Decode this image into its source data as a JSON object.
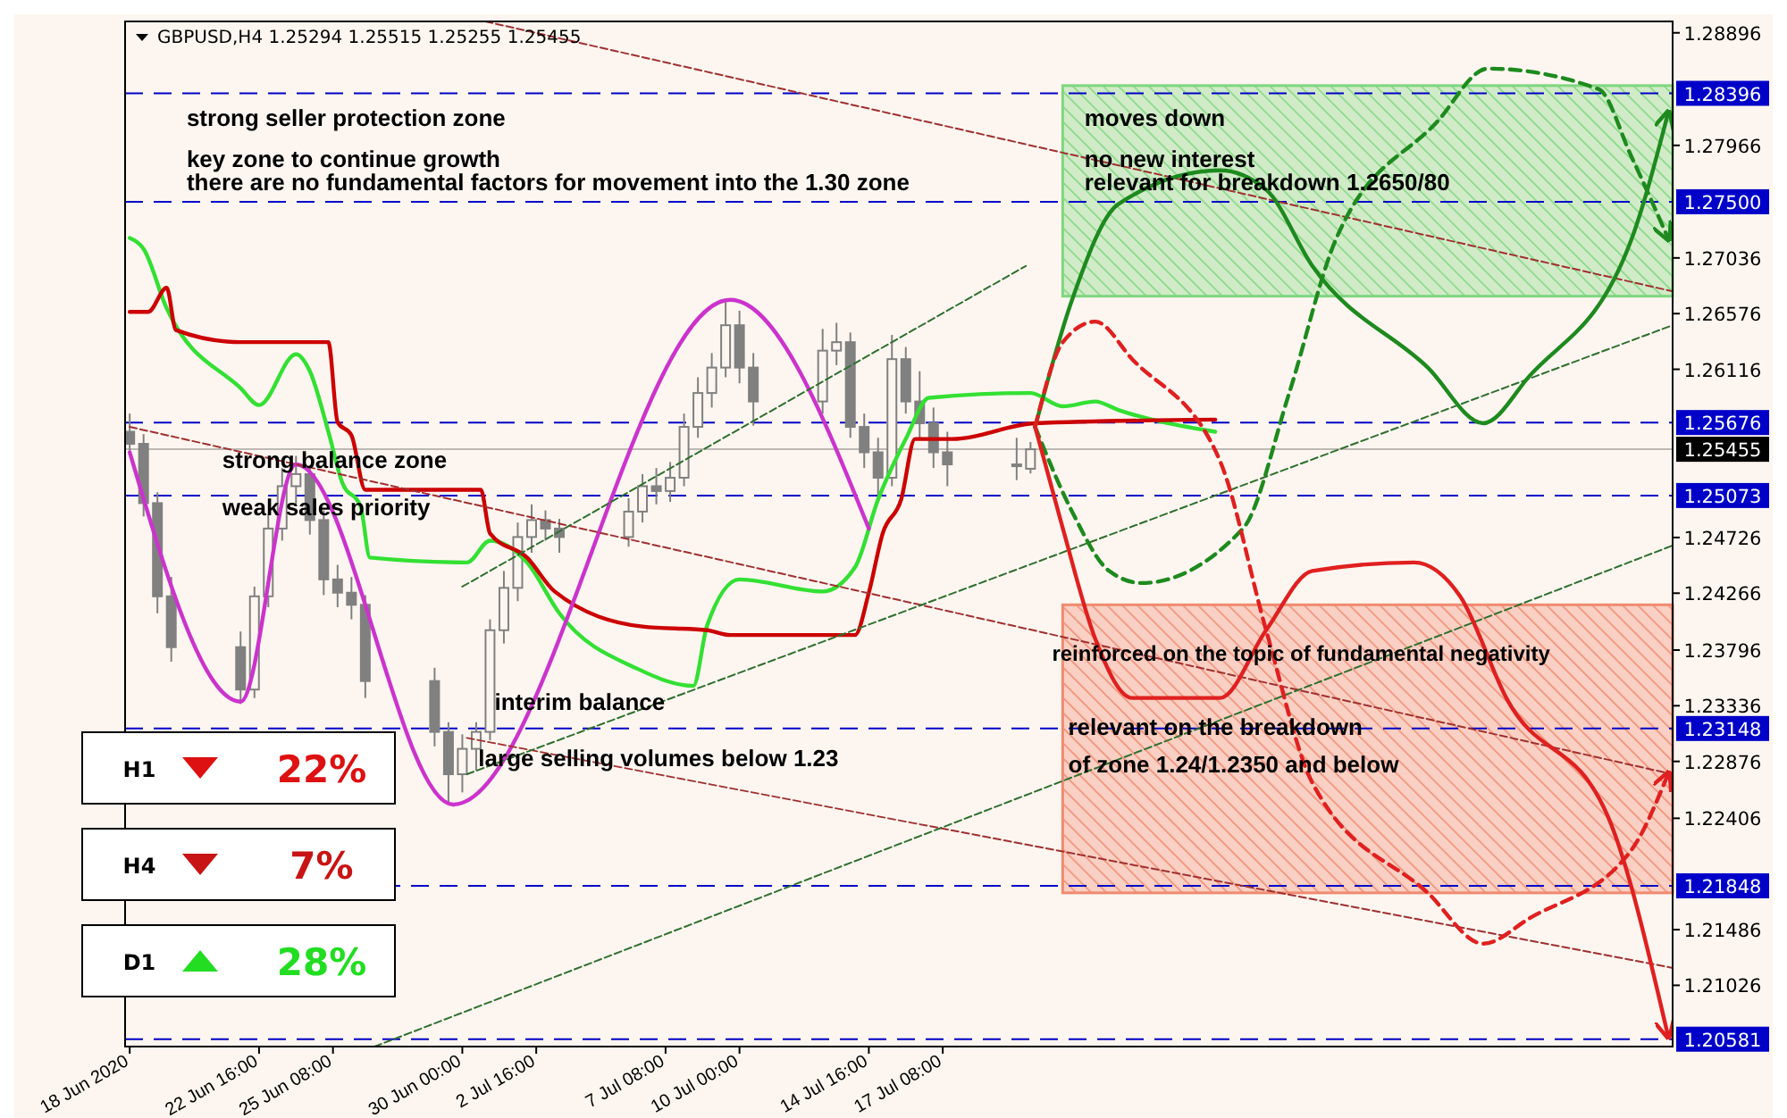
{
  "chart_data": {
    "type": "candlestick",
    "title": "GBPUSD,H4  1.25294 1.25515 1.25255 1.25455",
    "xlim": [
      "2020-06-17T20:00",
      "2020-08-12T16:00"
    ],
    "xticks": [
      {
        "value": "2020-06-18T00:00",
        "label": "18 Jun 2020"
      },
      {
        "value": "2020-06-22T16:00",
        "label": "22 Jun 16:00"
      },
      {
        "value": "2020-06-25T08:00",
        "label": "25 Jun 08:00"
      },
      {
        "value": "2020-06-30T00:00",
        "label": "30 Jun 00:00"
      },
      {
        "value": "2020-07-02T16:00",
        "label": "2 Jul 16:00"
      },
      {
        "value": "2020-07-07T08:00",
        "label": "7 Jul 08:00"
      },
      {
        "value": "2020-07-10T00:00",
        "label": "10 Jul 00:00"
      },
      {
        "value": "2020-07-14T16:00",
        "label": "14 Jul 16:00"
      },
      {
        "value": "2020-07-17T08:00",
        "label": "17 Jul 08:00"
      }
    ],
    "ylim": [
      1.2052,
      1.2899
    ],
    "yticks": [
      1.28896,
      1.27966,
      1.27036,
      1.26576,
      1.26116,
      1.24726,
      1.24266,
      1.23796,
      1.23336,
      1.22876,
      1.22406,
      1.21486,
      1.21026
    ],
    "series": [
      {
        "color": "#808080",
        "x": [
          "2020-06-18T00:00",
          "2020-06-18T12:00",
          "2020-06-19T00:00",
          "2020-06-19T12:00",
          "2020-06-22T00:00",
          "2020-06-22T12:00",
          "2020-06-23T00:00",
          "2020-06-23T12:00",
          "2020-06-24T00:00",
          "2020-06-24T12:00",
          "2020-06-25T00:00",
          "2020-06-25T12:00",
          "2020-06-26T00:00",
          "2020-06-26T12:00",
          "2020-06-29T00:00",
          "2020-06-29T12:00",
          "2020-06-30T00:00",
          "2020-06-30T12:00",
          "2020-07-01T00:00",
          "2020-07-01T12:00",
          "2020-07-02T00:00",
          "2020-07-02T12:00",
          "2020-07-03T00:00",
          "2020-07-03T12:00",
          "2020-07-06T00:00",
          "2020-07-06T12:00",
          "2020-07-07T00:00",
          "2020-07-07T12:00",
          "2020-07-08T00:00",
          "2020-07-08T12:00",
          "2020-07-09T00:00",
          "2020-07-09T12:00",
          "2020-07-10T00:00",
          "2020-07-10T12:00",
          "2020-07-13T00:00",
          "2020-07-13T12:00",
          "2020-07-14T00:00",
          "2020-07-14T12:00",
          "2020-07-15T00:00",
          "2020-07-15T12:00",
          "2020-07-16T00:00",
          "2020-07-16T12:00",
          "2020-07-17T00:00",
          "2020-07-17T12:00",
          "2020-07-20T00:00",
          "2020-07-20T12:00"
        ],
        "ohlc": [
          [
            1.256,
            1.2575,
            1.254,
            1.255
          ],
          [
            1.255,
            1.2558,
            1.249,
            1.2501
          ],
          [
            1.2501,
            1.251,
            1.241,
            1.2424
          ],
          [
            1.2424,
            1.244,
            1.237,
            1.2382
          ],
          [
            1.2382,
            1.2395,
            1.2335,
            1.2347
          ],
          [
            1.2347,
            1.2432,
            1.234,
            1.2424
          ],
          [
            1.2424,
            1.2492,
            1.2415,
            1.248
          ],
          [
            1.248,
            1.253,
            1.247,
            1.2515
          ],
          [
            1.2515,
            1.254,
            1.25,
            1.2525
          ],
          [
            1.2525,
            1.2532,
            1.2475,
            1.2487
          ],
          [
            1.2487,
            1.2495,
            1.2425,
            1.2438
          ],
          [
            1.2438,
            1.245,
            1.2415,
            1.2427
          ],
          [
            1.2427,
            1.244,
            1.2405,
            1.2417
          ],
          [
            1.2417,
            1.2425,
            1.234,
            1.2354
          ],
          [
            1.2354,
            1.2365,
            1.23,
            1.2312
          ],
          [
            1.2312,
            1.232,
            1.2252,
            1.2277
          ],
          [
            1.2277,
            1.231,
            1.2262,
            1.2298
          ],
          [
            1.2298,
            1.232,
            1.228,
            1.2312
          ],
          [
            1.2312,
            1.2405,
            1.2305,
            1.2396
          ],
          [
            1.2396,
            1.2445,
            1.2385,
            1.2431
          ],
          [
            1.2431,
            1.2485,
            1.242,
            1.2473
          ],
          [
            1.2473,
            1.25,
            1.246,
            1.2487
          ],
          [
            1.2487,
            1.2495,
            1.247,
            1.248
          ],
          [
            1.248,
            1.2488,
            1.246,
            1.2473
          ],
          [
            1.2473,
            1.2505,
            1.2465,
            1.2494
          ],
          [
            1.2494,
            1.2525,
            1.2485,
            1.2515
          ],
          [
            1.2515,
            1.253,
            1.25,
            1.2511
          ],
          [
            1.2511,
            1.2535,
            1.2502,
            1.2522
          ],
          [
            1.2522,
            1.2575,
            1.2515,
            1.2564
          ],
          [
            1.2564,
            1.2605,
            1.2555,
            1.2592
          ],
          [
            1.2592,
            1.2625,
            1.258,
            1.2613
          ],
          [
            1.2613,
            1.2669,
            1.2605,
            1.2648
          ],
          [
            1.2648,
            1.266,
            1.26,
            1.2613
          ],
          [
            1.2613,
            1.2625,
            1.2565,
            1.2585
          ],
          [
            1.2585,
            1.2645,
            1.2575,
            1.2627
          ],
          [
            1.2627,
            1.265,
            1.2615,
            1.2634
          ],
          [
            1.2634,
            1.2642,
            1.2555,
            1.2564
          ],
          [
            1.2564,
            1.2575,
            1.253,
            1.2543
          ],
          [
            1.2543,
            1.2555,
            1.2505,
            1.2522
          ],
          [
            1.2522,
            1.264,
            1.2515,
            1.262
          ],
          [
            1.262,
            1.263,
            1.2575,
            1.2585
          ],
          [
            1.2585,
            1.261,
            1.2555,
            1.2567
          ],
          [
            1.2567,
            1.258,
            1.253,
            1.2543
          ],
          [
            1.2543,
            1.256,
            1.2515,
            1.2533
          ],
          [
            1.2533,
            1.2555,
            1.252,
            1.2533
          ],
          [
            1.25294,
            1.25515,
            1.25255,
            1.25455
          ]
        ]
      },
      {
        "type": "line",
        "color": "#33e033",
        "line_style": "solid",
        "x": [
          "2020-06-18T00:00",
          "2020-06-18T12:00",
          "2020-06-19T08:00",
          "2020-06-22T00:00",
          "2020-06-22T16:00",
          "2020-06-24T00:00",
          "2020-06-24T12:00",
          "2020-06-25T04:00",
          "2020-06-25T16:00",
          "2020-06-26T08:00",
          "2020-06-26T16:00",
          "2020-06-30T04:00",
          "2020-07-01T00:00",
          "2020-07-02T08:00",
          "2020-07-03T12:00",
          "2020-07-06T08:00",
          "2020-07-08T08:00",
          "2020-07-08T20:00",
          "2020-07-10T00:00",
          "2020-07-13T00:00",
          "2020-07-14T04:00",
          "2020-07-15T00:00",
          "2020-07-16T00:00",
          "2020-07-16T20:00",
          "2020-07-20T12:00",
          "2020-07-21T16:00",
          "2020-07-22T20:00",
          "2020-07-23T16:00",
          "2020-07-27T04:00"
        ],
        "values": [
          1.272,
          1.2711,
          1.2662,
          1.2596,
          1.2582,
          1.2624,
          1.261,
          1.256,
          1.2518,
          1.2498,
          1.2456,
          1.2452,
          1.247,
          1.2452,
          1.241,
          1.2364,
          1.235,
          1.24,
          1.2438,
          1.2428,
          1.2448,
          1.2504,
          1.2554,
          1.2588,
          1.2592,
          1.2581,
          1.2585,
          1.2578,
          1.256
        ]
      },
      {
        "type": "line",
        "color": "#cc0000",
        "line_style": "solid",
        "x": [
          "2020-06-18T00:00",
          "2020-06-18T16:00",
          "2020-06-19T08:00",
          "2020-06-19T16:00",
          "2020-06-22T00:00",
          "2020-06-25T04:00",
          "2020-06-25T12:00",
          "2020-06-26T00:00",
          "2020-06-26T12:00",
          "2020-06-30T16:00",
          "2020-07-01T00:00",
          "2020-07-02T08:00",
          "2020-07-03T08:00",
          "2020-07-06T12:00",
          "2020-07-08T20:00",
          "2020-07-09T16:00",
          "2020-07-14T04:00",
          "2020-07-14T16:00",
          "2020-07-15T04:00",
          "2020-07-15T20:00",
          "2020-07-16T08:00",
          "2020-07-17T16:00",
          "2020-07-20T16:00",
          "2020-07-27T04:00"
        ],
        "values": [
          1.2659,
          1.2659,
          1.2679,
          1.2644,
          1.2634,
          1.2634,
          1.2568,
          1.2557,
          1.2512,
          1.2512,
          1.2476,
          1.2456,
          1.2428,
          1.2399,
          1.2396,
          1.2392,
          1.2392,
          1.2427,
          1.2476,
          1.2504,
          1.2554,
          1.2554,
          1.2567,
          1.257
        ]
      },
      {
        "type": "line",
        "color": "#cc33cc",
        "line_style": "solid",
        "x": [
          "2020-06-18T00:00",
          "2020-06-22T00:00",
          "2020-06-24T00:00",
          "2020-06-29T16:00",
          "2020-07-09T16:00",
          "2020-07-14T16:00"
        ],
        "values": [
          1.2543,
          1.2337,
          1.2533,
          1.2252,
          1.2669,
          1.248
        ]
      },
      {
        "type": "line",
        "color": "#a03030",
        "line_style": "dashed",
        "x": [
          "2020-06-30T20:00",
          "2020-08-12T16:00"
        ],
        "values": [
          1.2899,
          1.2676
        ]
      },
      {
        "type": "line",
        "color": "#a03030",
        "line_style": "dashed",
        "x": [
          "2020-06-18T00:00",
          "2020-08-12T16:00"
        ],
        "values": [
          1.2564,
          1.2277
        ]
      },
      {
        "type": "line",
        "color": "#a03030",
        "line_style": "dashed",
        "x": [
          "2020-06-30T04:00",
          "2020-08-12T16:00"
        ],
        "values": [
          1.2307,
          1.2117
        ]
      },
      {
        "type": "line",
        "color": "#2f6f2f",
        "line_style": "dashed",
        "x": [
          "2020-06-30T00:00",
          "2020-07-20T08:00"
        ],
        "values": [
          1.2432,
          1.2697
        ]
      },
      {
        "type": "line",
        "color": "#2f6f2f",
        "line_style": "dashed",
        "x": [
          "2020-06-30T04:00",
          "2020-08-12T16:00"
        ],
        "values": [
          1.2277,
          1.2648
        ]
      },
      {
        "type": "line",
        "color": "#2f6f2f",
        "line_style": "dashed",
        "x": [
          "2020-06-26T20:00",
          "2020-08-12T16:00"
        ],
        "values": [
          1.2052,
          1.2466
        ]
      },
      {
        "type": "line",
        "color": "#1e8a1e",
        "line_style": "solid",
        "x": [
          "2020-07-20T16:00",
          "2020-07-22T00:00",
          "2020-07-23T16:00",
          "2020-07-27T08:00",
          "2020-07-29T00:00",
          "2020-07-30T16:00",
          "2020-08-03T20:00",
          "2020-08-05T20:00",
          "2020-08-07T12:00",
          "2020-08-11T04:00",
          "2020-08-12T12:00"
        ],
        "values": [
          1.2564,
          1.2669,
          1.2748,
          1.2776,
          1.276,
          1.2697,
          1.2613,
          1.2567,
          1.2606,
          1.2718,
          1.2823
        ]
      },
      {
        "type": "line",
        "color": "#1e8a1e",
        "line_style": "dashed",
        "x": [
          "2020-07-20T16:00",
          "2020-07-22T00:00",
          "2020-07-23T08:00",
          "2020-07-24T12:00",
          "2020-07-28T04:00",
          "2020-07-29T20:00",
          "2020-07-31T12:00",
          "2020-08-04T04:00",
          "2020-08-06T00:00",
          "2020-08-10T00:00",
          "2020-08-11T04:00",
          "2020-08-12T12:00"
        ],
        "values": [
          1.2564,
          1.2494,
          1.2445,
          1.2435,
          1.248,
          1.2592,
          1.2718,
          1.2816,
          1.286,
          1.2843,
          1.2788,
          1.272
        ]
      },
      {
        "type": "line",
        "color": "#e02020",
        "line_style": "solid",
        "x": [
          "2020-07-20T16:00",
          "2020-07-21T16:00",
          "2020-07-22T20:00",
          "2020-07-24T04:00",
          "2020-07-27T08:00",
          "2020-07-29T00:00",
          "2020-07-30T16:00",
          "2020-08-03T08:00",
          "2020-08-05T00:00",
          "2020-08-06T16:00",
          "2020-08-10T08:00",
          "2020-08-12T12:00"
        ],
        "values": [
          1.2564,
          1.248,
          1.2389,
          1.234,
          1.234,
          1.2396,
          1.2445,
          1.2452,
          1.2424,
          1.234,
          1.2242,
          1.2061
        ]
      },
      {
        "type": "line",
        "color": "#e02020",
        "line_style": "dashed",
        "x": [
          "2020-07-20T16:00",
          "2020-07-21T16:00",
          "2020-07-22T20:00",
          "2020-07-24T04:00",
          "2020-07-27T08:00",
          "2020-07-29T00:00",
          "2020-07-30T16:00",
          "2020-08-03T20:00",
          "2020-08-05T20:00",
          "2020-08-07T12:00",
          "2020-08-11T04:00",
          "2020-08-12T12:00"
        ],
        "values": [
          1.2564,
          1.2634,
          1.2651,
          1.262,
          1.2536,
          1.2396,
          1.227,
          1.2179,
          1.2137,
          1.2158,
          1.2214,
          1.2277
        ]
      }
    ],
    "ref_lines": [
      {
        "axis": "y",
        "value": 1.28396,
        "label": "1.28396",
        "color": "#0000c8",
        "line_style": "dashed"
      },
      {
        "axis": "y",
        "value": 1.275,
        "label": "1.27500",
        "color": "#0000c8",
        "line_style": "dashed"
      },
      {
        "axis": "y",
        "value": 1.25676,
        "label": "1.25676",
        "color": "#0000c8",
        "line_style": "dashed"
      },
      {
        "axis": "y",
        "value": 1.25455,
        "label": "1.25455",
        "color": "#000000",
        "line_style": "solid"
      },
      {
        "axis": "y",
        "value": 1.25073,
        "label": "1.25073",
        "color": "#0000c8",
        "line_style": "dashed"
      },
      {
        "axis": "y",
        "value": 1.23148,
        "label": "1.23148",
        "color": "#0000c8",
        "line_style": "dashed"
      },
      {
        "axis": "y",
        "value": 1.21848,
        "label": "1.21848",
        "color": "#0000c8",
        "line_style": "dashed"
      },
      {
        "axis": "y",
        "value": 1.20581,
        "label": "1.20581",
        "color": "#0000c8",
        "line_style": "dashed"
      }
    ],
    "bands": [
      {
        "axis": "y",
        "from": 1.2672,
        "to": 1.2846,
        "color": "#7fd67f"
      },
      {
        "axis": "y",
        "from": 1.2179,
        "to": 1.2417,
        "color": "#f08a70"
      }
    ],
    "annotations": [
      "strong seller protection zone",
      "key zone to continue growth",
      "there are no fundamental factors for movement into the 1.30 zone",
      "strong balance zone",
      "weak sales priority",
      "interim balance",
      "large selling volumes below 1.23",
      "moves down",
      "no new interest",
      "relevant for breakdown 1.2650/80",
      "reinforced on the topic of fundamental negativity",
      "relevant on the breakdown",
      "of zone 1.24/1.2350 and below",
      "H1",
      "22%",
      "H4",
      "7%",
      "D1",
      "28%"
    ]
  }
}
